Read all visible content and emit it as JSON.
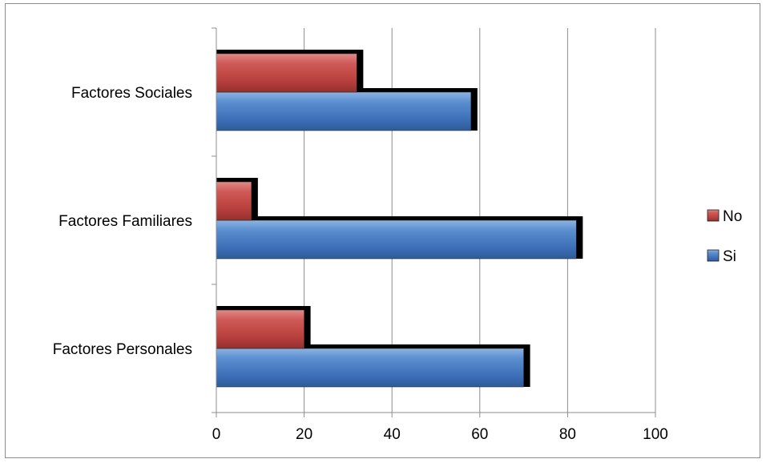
{
  "chart_data": {
    "type": "bar",
    "orientation": "horizontal",
    "categories": [
      "Factores Personales",
      "Factores Familiares",
      "Factores Sociales"
    ],
    "series": [
      {
        "name": "Si",
        "values": [
          70,
          82,
          58
        ],
        "color": "#4f81bd"
      },
      {
        "name": "No",
        "values": [
          20,
          8,
          32
        ],
        "color": "#c0504d"
      }
    ],
    "xlim": [
      0,
      100
    ],
    "xticks": [
      "0",
      "20",
      "40",
      "60",
      "80",
      "100"
    ],
    "grid": true,
    "legend": {
      "placement": "right",
      "entries": [
        "No",
        "Si"
      ]
    }
  }
}
